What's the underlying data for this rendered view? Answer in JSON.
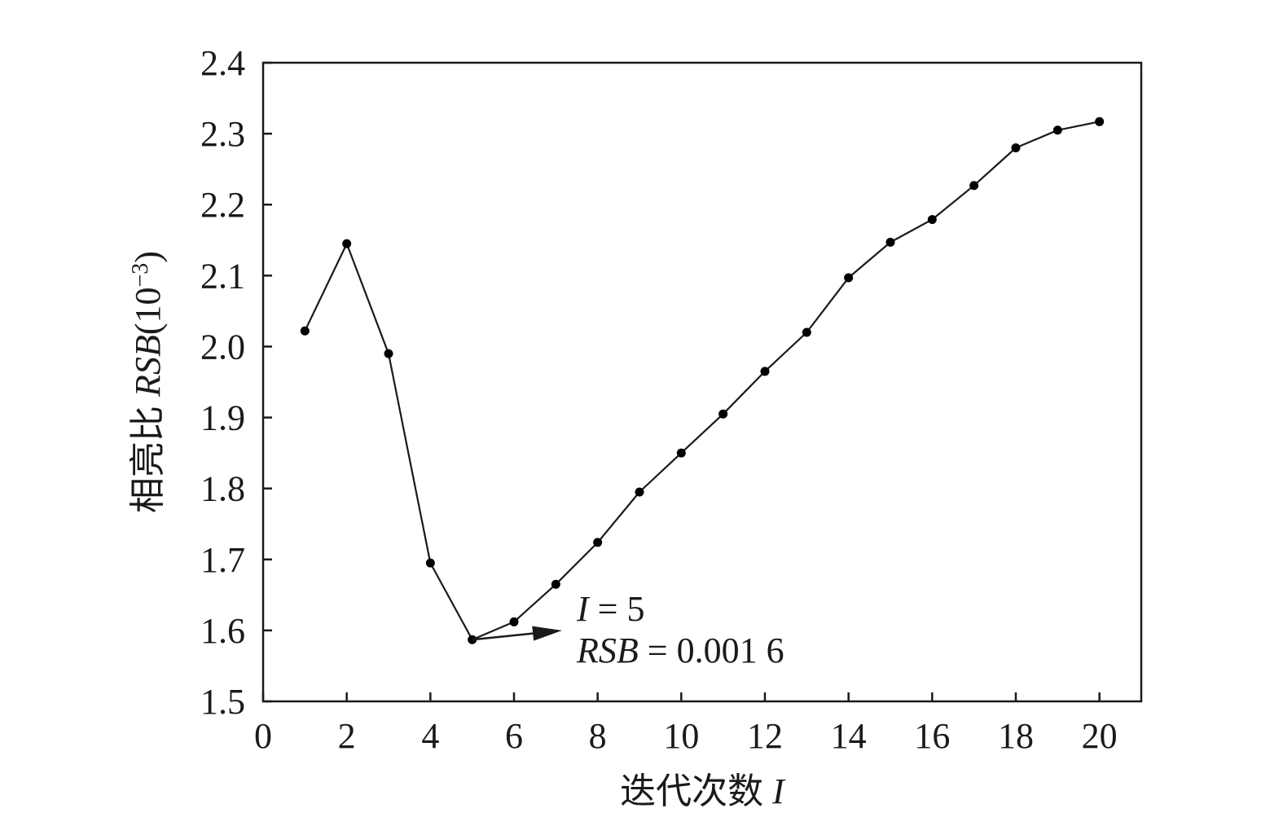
{
  "chart_data": {
    "type": "line",
    "xlabel_text": "迭代次数 ",
    "xlabel_var": "I",
    "ylabel_prefix": "相亮比 ",
    "ylabel_var": "RSB",
    "ylabel_unit_open": "(10",
    "ylabel_unit_exp": "−3",
    "ylabel_unit_close": ")",
    "xlim": [
      0,
      21
    ],
    "ylim": [
      1.5,
      2.4
    ],
    "x_ticks": [
      0,
      2,
      4,
      6,
      8,
      10,
      12,
      14,
      16,
      18,
      20
    ],
    "x_tick_labels": [
      "0",
      "2",
      "4",
      "6",
      "8",
      "10",
      "12",
      "14",
      "16",
      "18",
      "20"
    ],
    "y_ticks": [
      1.5,
      1.6,
      1.7,
      1.8,
      1.9,
      2.0,
      2.1,
      2.2,
      2.3,
      2.4
    ],
    "y_tick_labels": [
      "1.5",
      "1.6",
      "1.7",
      "1.8",
      "1.9",
      "2.0",
      "2.1",
      "2.2",
      "2.3",
      "2.4"
    ],
    "grid": false,
    "series": [
      {
        "x": [
          1,
          2,
          3,
          4,
          5,
          6,
          7,
          8,
          9,
          10,
          11,
          12,
          13,
          14,
          15,
          16,
          17,
          18,
          19,
          20
        ],
        "y": [
          2.022,
          2.145,
          1.99,
          1.695,
          1.587,
          1.612,
          1.665,
          1.724,
          1.795,
          1.85,
          1.905,
          1.965,
          2.02,
          2.097,
          2.147,
          2.179,
          2.227,
          2.28,
          2.305,
          2.317
        ]
      }
    ],
    "annotation": {
      "point": [
        5,
        1.587
      ],
      "line1_var": "I",
      "line1_rest": " = 5",
      "line2_var": "RSB",
      "line2_rest": " = 0.001 6"
    },
    "colors": {
      "line": "#1a1a1a",
      "marker": "#000000",
      "axis": "#1a1a1a"
    }
  }
}
